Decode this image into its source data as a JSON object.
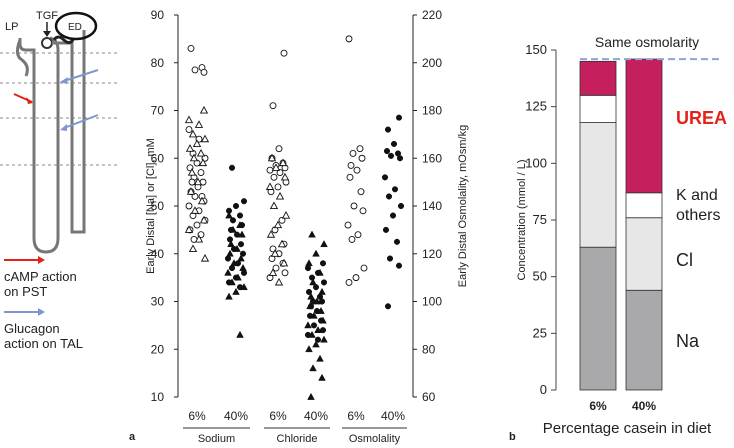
{
  "nephron": {
    "labels": {
      "lp": "LP",
      "tgf": "TGF",
      "ed": "ED"
    },
    "legend": [
      {
        "text": "cAMP action on PST",
        "lines": [
          "cAMP action",
          "on PST"
        ],
        "color": "#e2231a"
      },
      {
        "text": "Glucagon action on TAL",
        "lines": [
          "Glucagon",
          "action on TAL"
        ],
        "color": "#7f97cf"
      }
    ]
  },
  "panel_a": {
    "letter": "a"
  },
  "panel_b": {
    "letter": "b"
  },
  "chart_data": [
    {
      "id": "a",
      "type": "scatter",
      "ylabel_left": "Early Distal [Na] or [Cl], mM",
      "ylabel_right": "Early Distal Osmolality, mOsm/kg",
      "ylim_left": [
        10,
        90
      ],
      "ylim_right": [
        60,
        220
      ],
      "yticks_left": [
        10,
        20,
        30,
        40,
        50,
        60,
        70,
        80,
        90
      ],
      "yticks_right": [
        60,
        80,
        100,
        120,
        140,
        160,
        180,
        200,
        220
      ],
      "groups": [
        {
          "name": "Sodium",
          "ticks": [
            "6%",
            "40%"
          ]
        },
        {
          "name": "Chloride",
          "ticks": [
            "6%",
            "40%"
          ]
        },
        {
          "name": "Osmolality",
          "ticks": [
            "6%",
            "40%"
          ]
        }
      ],
      "series": [
        {
          "group": "Sodium",
          "diet": "6%",
          "marker": "open-circle",
          "axis": "left",
          "values": [
            83,
            79,
            78.5,
            78,
            66,
            64,
            61,
            60,
            59,
            58,
            57,
            56,
            55,
            55,
            54,
            53,
            52,
            52,
            51,
            50,
            49,
            48,
            47,
            46,
            45,
            44,
            43
          ]
        },
        {
          "group": "Sodium",
          "diet": "6%",
          "marker": "open-triangle",
          "axis": "left",
          "values": [
            70,
            68,
            67,
            65,
            64,
            63,
            62,
            61,
            60,
            59,
            57,
            55,
            53,
            51,
            49,
            47,
            45,
            43,
            41,
            39
          ]
        },
        {
          "group": "Sodium",
          "diet": "40%",
          "marker": "filled-circle",
          "axis": "left",
          "values": [
            58,
            51,
            50,
            49,
            48,
            47,
            46,
            45,
            44,
            43,
            42,
            41,
            40,
            39,
            38,
            37,
            36,
            35,
            34,
            33
          ]
        },
        {
          "group": "Sodium",
          "diet": "40%",
          "marker": "filled-triangle",
          "axis": "left",
          "values": [
            48,
            46,
            45,
            44,
            42,
            41,
            40,
            39,
            38,
            37,
            36,
            35,
            34,
            33,
            32,
            31,
            23
          ]
        },
        {
          "group": "Chloride",
          "diet": "6%",
          "marker": "open-circle",
          "axis": "left",
          "values": [
            82,
            71,
            62,
            60,
            59,
            58.5,
            58,
            57.5,
            57,
            56,
            55,
            54,
            53,
            47,
            45,
            42,
            41,
            40,
            39,
            38,
            37,
            36,
            35
          ]
        },
        {
          "group": "Chloride",
          "diet": "6%",
          "marker": "open-triangle",
          "axis": "left",
          "values": [
            60,
            59,
            58,
            56,
            54,
            52,
            50,
            48,
            46,
            44,
            42,
            40,
            38,
            36,
            34
          ]
        },
        {
          "group": "Chloride",
          "diet": "40%",
          "marker": "filled-circle",
          "axis": "left",
          "values": [
            38,
            37,
            36,
            35,
            34,
            33,
            32,
            31,
            30,
            30,
            29,
            28,
            27,
            26,
            25,
            24,
            23,
            22
          ]
        },
        {
          "group": "Chloride",
          "diet": "40%",
          "marker": "filled-triangle",
          "axis": "left",
          "values": [
            44,
            42,
            40,
            38,
            36,
            34,
            32,
            31,
            30,
            29,
            28,
            27,
            26,
            25,
            24,
            23,
            22,
            21,
            20,
            18,
            16,
            14,
            10
          ]
        },
        {
          "group": "Osmolality",
          "diet": "6%",
          "marker": "open-circle",
          "axis": "right",
          "values": [
            210,
            164,
            162,
            160,
            157,
            155,
            152,
            146,
            140,
            138,
            132,
            128,
            126,
            114,
            110,
            108
          ]
        },
        {
          "group": "Osmolality",
          "diet": "40%",
          "marker": "filled-circle",
          "axis": "right",
          "values": [
            177,
            172,
            166,
            163,
            162,
            161,
            160,
            152,
            147,
            144,
            140,
            136,
            130,
            125,
            118,
            115,
            98
          ]
        }
      ]
    },
    {
      "id": "b",
      "type": "bar",
      "stacked": true,
      "annotation": "Same osmolarity",
      "reference_line": 146,
      "ylabel": "Concentration (mmol / L)",
      "xlabel": "Percentage casein in diet",
      "ylim": [
        0,
        150
      ],
      "yticks": [
        0,
        25,
        50,
        75,
        100,
        125,
        150
      ],
      "categories": [
        "6%",
        "40%"
      ],
      "series": [
        {
          "name": "Na",
          "values": [
            63,
            44
          ],
          "color": "#a9a9ab"
        },
        {
          "name": "Cl",
          "values": [
            55,
            32
          ],
          "color": "#e7e7e8"
        },
        {
          "name": "K and others",
          "values": [
            12,
            11
          ],
          "color": "#ffffff"
        },
        {
          "name": "UREA",
          "values": [
            15,
            59
          ],
          "color": "#c51f5d"
        }
      ],
      "legend_labels": {
        "urea": {
          "text": "UREA",
          "color": "#e2231a"
        },
        "k_others": {
          "text": "K and others",
          "lines": [
            "K and",
            "others"
          ]
        },
        "cl": {
          "text": "Cl"
        },
        "na": {
          "text": "Na"
        }
      },
      "ref_color": "#8ea2d4"
    }
  ]
}
